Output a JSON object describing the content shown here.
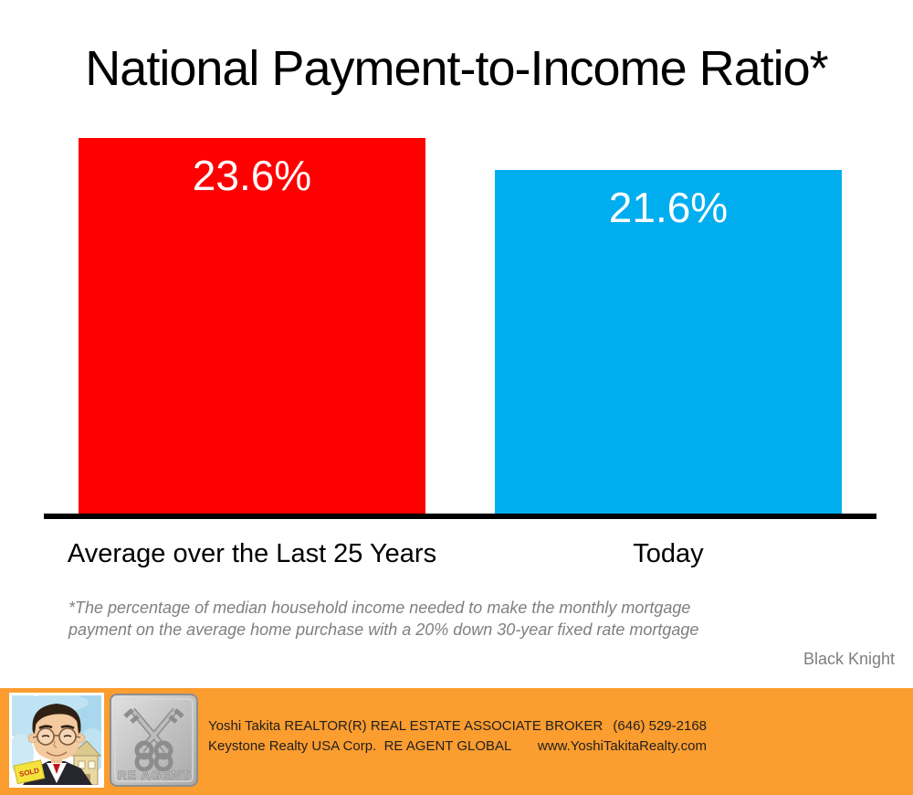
{
  "title": "National Payment-to-Income Ratio*",
  "chart_data": {
    "type": "bar",
    "title": "National Payment-to-Income Ratio*",
    "categories": [
      "Average over the Last 25 Years",
      "Today"
    ],
    "values": [
      23.6,
      21.6
    ],
    "data_labels": [
      "23.6%",
      "21.6%"
    ],
    "bar_colors": [
      "#fe0000",
      "#00aeef"
    ],
    "ylim": [
      0,
      23.6
    ],
    "grid": false,
    "legend": false,
    "axis_color": "#000000"
  },
  "footnote": {
    "line1": "*The percentage of median household income needed to make the monthly mortgage",
    "line2": "payment on the average home purchase with a 20% down 30-year fixed rate mortgage"
  },
  "source": "Black Knight",
  "footer": {
    "background": "#fc9d2f",
    "logo_text": "RE AGENT",
    "sign_text": "SOLD",
    "agent_line1": "Yoshi Takita REALTOR(R) REAL ESTATE ASSOCIATE BROKER",
    "agent_line2": "Keystone Realty USA Corp.  RE AGENT GLOBAL",
    "phone": "(646) 529-2168",
    "website": "www.YoshiTakitaRealty.com"
  }
}
